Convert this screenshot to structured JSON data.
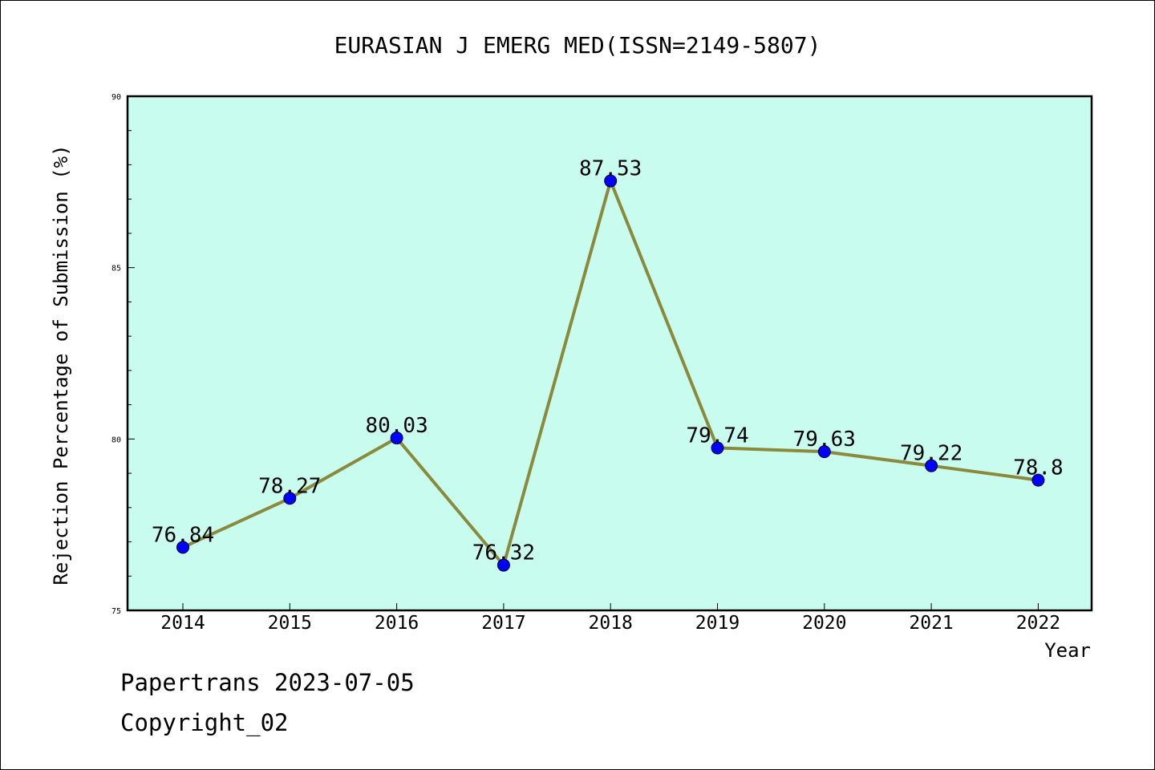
{
  "chart_data": {
    "type": "line",
    "title": "EURASIAN J EMERG MED(ISSN=2149-5807)",
    "xlabel": "Year",
    "ylabel": "Rejection Percentage of Submission (%)",
    "categories": [
      "2014",
      "2015",
      "2016",
      "2017",
      "2018",
      "2019",
      "2020",
      "2021",
      "2022"
    ],
    "series": [
      {
        "values": [
          76.84,
          78.27,
          80.03,
          76.32,
          87.53,
          79.74,
          79.63,
          79.22,
          78.8
        ],
        "labels": [
          "76.84",
          "78.27",
          "80.03",
          "76.32",
          "87.53",
          "79.74",
          "79.63",
          "79.22",
          "78.8"
        ]
      }
    ],
    "ylim": [
      75,
      90
    ],
    "yticks": [
      "75",
      "80",
      "85",
      "90"
    ],
    "grid": false,
    "colors": {
      "plot_background": "#c8fcee",
      "line": "#8b8a3c",
      "marker": "#0000ff"
    }
  },
  "footer": {
    "line1": "Papertrans 2023-07-05",
    "line2": "Copyright_02"
  }
}
